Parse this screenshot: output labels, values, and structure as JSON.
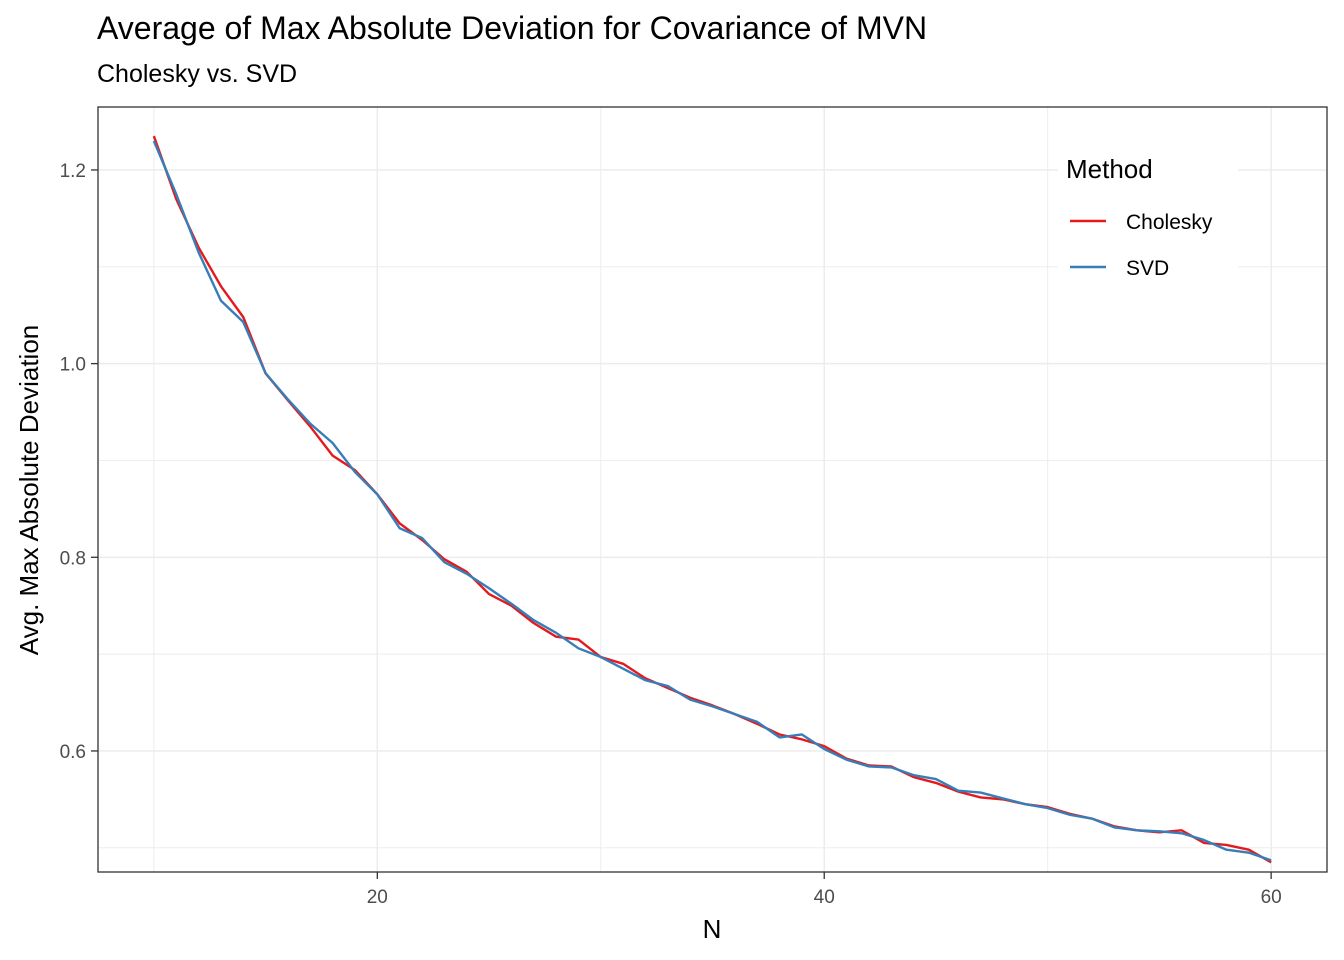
{
  "chart_data": {
    "type": "line",
    "title": "Average of Max Absolute Deviation for Covariance of MVN",
    "subtitle": "Cholesky vs. SVD",
    "xlabel": "N",
    "ylabel": "Avg. Max Absolute Deviation",
    "xlim": [
      7.5,
      62.5
    ],
    "ylim": [
      0.475,
      1.265
    ],
    "x_ticks": [
      20,
      40,
      60
    ],
    "y_ticks": [
      0.6,
      0.8,
      1.0,
      1.2
    ],
    "x_tick_labels": [
      "20",
      "40",
      "60"
    ],
    "y_tick_labels": [
      "0.6",
      "0.8",
      "1.0",
      "1.2"
    ],
    "grid": true,
    "legend": {
      "title": "Method",
      "position": "top-right"
    },
    "x": [
      10,
      11,
      12,
      13,
      14,
      15,
      16,
      17,
      18,
      19,
      20,
      21,
      22,
      23,
      24,
      25,
      26,
      27,
      28,
      29,
      30,
      31,
      32,
      33,
      34,
      35,
      36,
      37,
      38,
      39,
      40,
      41,
      42,
      43,
      44,
      45,
      46,
      47,
      48,
      49,
      50,
      51,
      52,
      53,
      54,
      55,
      56,
      57,
      58,
      59,
      60
    ],
    "series": [
      {
        "name": "Cholesky",
        "color": "#e41a1c",
        "values": [
          1.235,
          1.17,
          1.12,
          1.08,
          1.048,
          0.99,
          0.962,
          0.935,
          0.905,
          0.89,
          0.865,
          0.835,
          0.818,
          0.798,
          0.785,
          0.762,
          0.75,
          0.732,
          0.718,
          0.715,
          0.697,
          0.69,
          0.675,
          0.665,
          0.655,
          0.647,
          0.638,
          0.628,
          0.617,
          0.612,
          0.605,
          0.592,
          0.585,
          0.584,
          0.573,
          0.567,
          0.558,
          0.552,
          0.55,
          0.545,
          0.542,
          0.535,
          0.53,
          0.522,
          0.518,
          0.516,
          0.518,
          0.505,
          0.503,
          0.498,
          0.485
        ]
      },
      {
        "name": "SVD",
        "color": "#377eb8",
        "values": [
          1.23,
          1.175,
          1.115,
          1.065,
          1.043,
          0.99,
          0.963,
          0.938,
          0.918,
          0.888,
          0.865,
          0.83,
          0.82,
          0.795,
          0.783,
          0.768,
          0.752,
          0.735,
          0.722,
          0.706,
          0.697,
          0.685,
          0.673,
          0.667,
          0.653,
          0.646,
          0.638,
          0.63,
          0.614,
          0.617,
          0.602,
          0.591,
          0.584,
          0.583,
          0.575,
          0.571,
          0.559,
          0.557,
          0.551,
          0.545,
          0.541,
          0.534,
          0.53,
          0.521,
          0.518,
          0.517,
          0.515,
          0.508,
          0.498,
          0.495,
          0.487
        ]
      }
    ]
  }
}
